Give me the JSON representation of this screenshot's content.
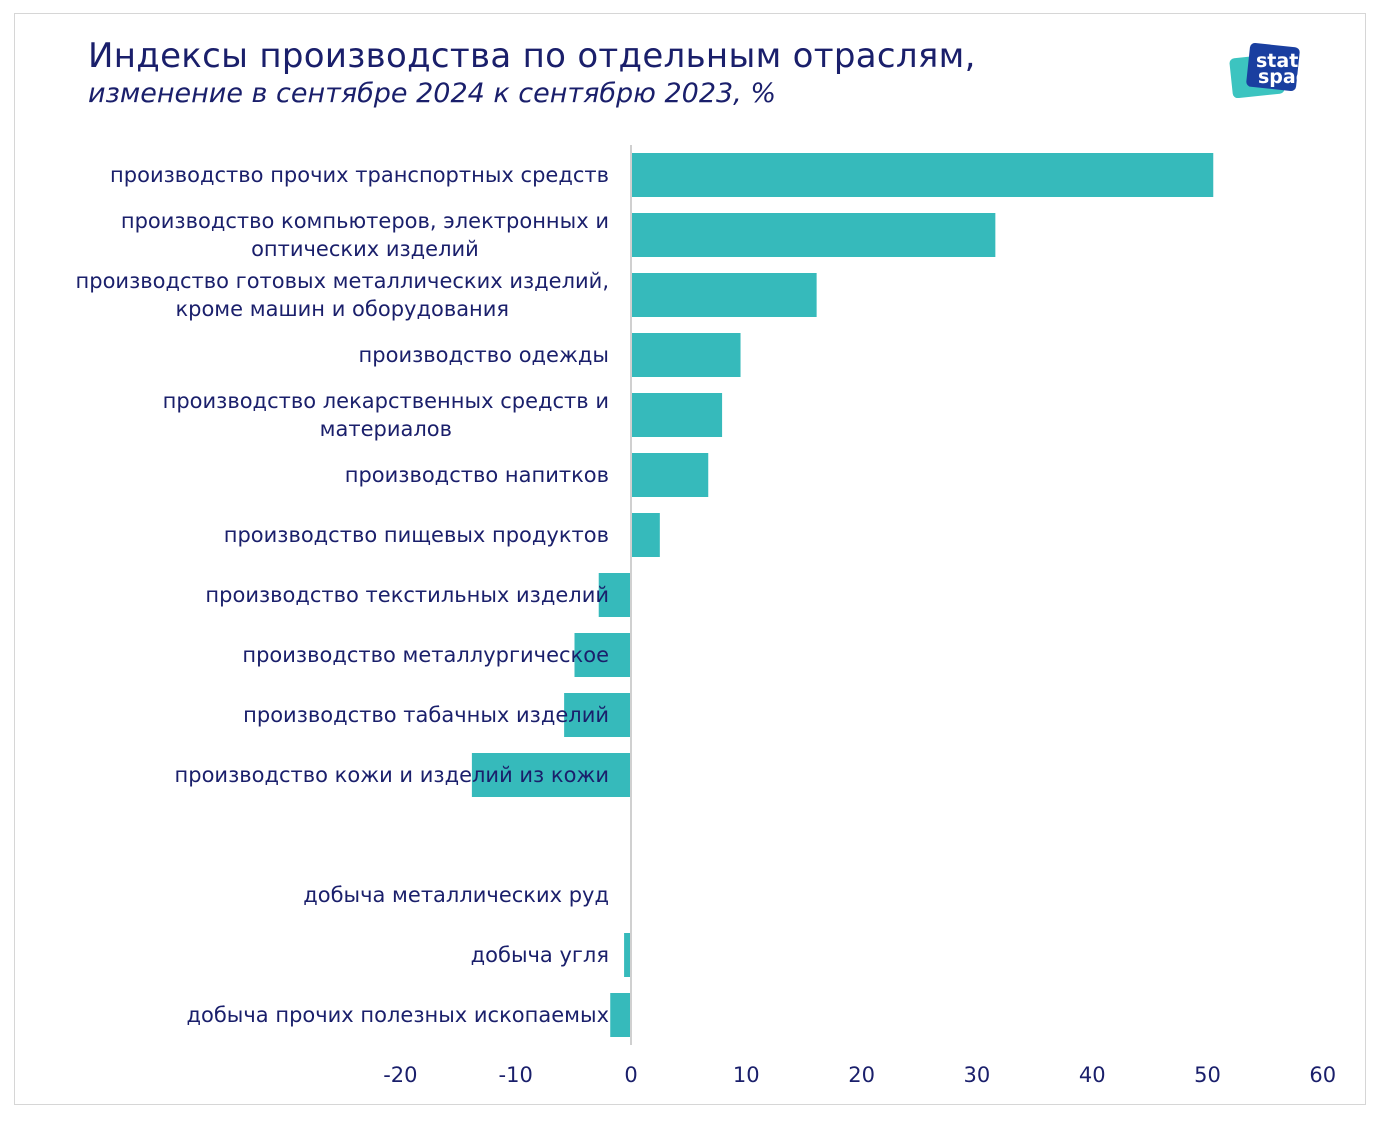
{
  "chart_data": {
    "type": "bar",
    "orientation": "horizontal",
    "title": "Индексы производства по отдельным отраслям,",
    "subtitle": "изменение в сентябре 2024 к сентябрю 2023, %",
    "categories": [
      "производство прочих транспортных средств",
      "производство компьютеров, электронных и|оптических изделий",
      "производство готовых металлических изделий,|кроме машин и оборудования",
      "производство одежды",
      "производство лекарственных средств и|материалов",
      "производство напитков",
      "производство пищевых продуктов",
      "производство текстильных изделий",
      "производство металлургическое",
      "производство табачных изделий",
      "производство кожи и изделий из кожи",
      "",
      "добыча металлических руд",
      "добыча угля",
      "добыча прочих полезных ископаемых"
    ],
    "values": [
      50.5,
      31.6,
      16.1,
      9.5,
      7.9,
      6.7,
      2.5,
      -2.8,
      -4.9,
      -5.8,
      -13.8,
      null,
      0,
      -0.6,
      -1.8
    ],
    "xlim": [
      -20,
      60
    ],
    "xticks": [
      "-20",
      "-10",
      "0",
      "10",
      "20",
      "30",
      "40",
      "50",
      "60"
    ],
    "xlabel": "",
    "ylabel": "",
    "grid": false,
    "bar_color": "#36babb",
    "text_color": "#1a1f6b"
  },
  "logo": {
    "line1": "stat",
    "line2": "space"
  }
}
